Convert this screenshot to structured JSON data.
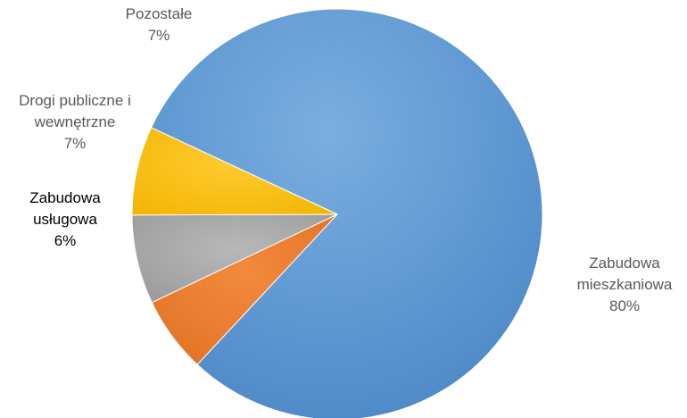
{
  "chart_data": {
    "type": "pie",
    "title": "",
    "slices": [
      {
        "label_lines": [
          "Zabudowa",
          "mieszkaniowa"
        ],
        "pct_label": "80%",
        "value": 80,
        "color": "#5b9bd5",
        "label_color": "#595959"
      },
      {
        "label_lines": [
          "Zabudowa",
          "usługowa"
        ],
        "pct_label": "6%",
        "value": 6,
        "color": "#ed7d31",
        "label_color": "#000000"
      },
      {
        "label_lines": [
          "Drogi publiczne i",
          "wewnętrzne"
        ],
        "pct_label": "7%",
        "value": 7,
        "color": "#a5a5a5",
        "label_color": "#595959"
      },
      {
        "label_lines": [
          "Pozostałe"
        ],
        "pct_label": "7%",
        "value": 7,
        "color": "#ffc000",
        "label_color": "#595959"
      }
    ]
  }
}
